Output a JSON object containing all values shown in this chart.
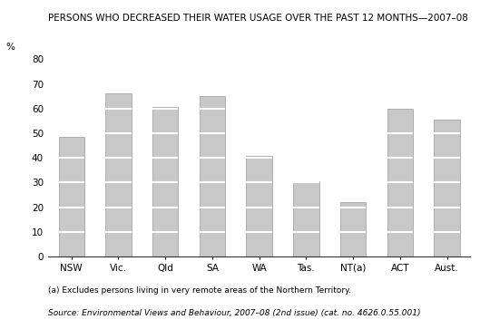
{
  "title": "PERSONS WHO DECREASED THEIR WATER USAGE OVER THE PAST 12 MONTHS—2007–08",
  "ylabel": "%",
  "categories": [
    "NSW",
    "Vic.",
    "Qld",
    "SA",
    "WA",
    "Tas.",
    "NT(a)",
    "ACT",
    "Aust."
  ],
  "values": [
    48.5,
    66.0,
    60.5,
    65.0,
    41.0,
    30.5,
    22.0,
    60.0,
    55.5
  ],
  "bar_color": "#c8c8c8",
  "bar_edge_color": "#999999",
  "grid_line_color": "#ffffff",
  "ylim": [
    0,
    80
  ],
  "yticks": [
    0,
    10,
    20,
    30,
    40,
    50,
    60,
    70,
    80
  ],
  "note1": "(a) Excludes persons living in very remote areas of the Northern Territory.",
  "note2": "Source: Environmental Views and Behaviour, 2007–08 (2nd issue) (cat. no. 4626.0.55.001)",
  "title_fontsize": 7.5,
  "axis_fontsize": 7.5,
  "note_fontsize": 6.5,
  "bar_width": 0.55,
  "background_color": "#ffffff"
}
